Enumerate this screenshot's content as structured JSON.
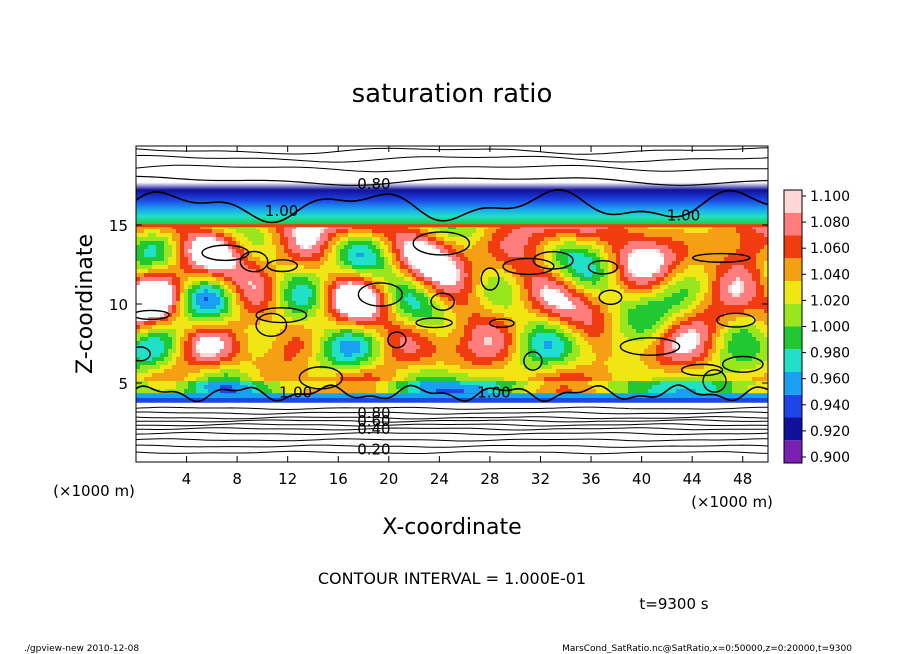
{
  "chart_data": {
    "type": "heatmap",
    "title": "saturation ratio",
    "xlabel": "X-coordinate",
    "ylabel": "Z-coordinate",
    "x_unit": "(×1000 m)",
    "y_unit": "(×1000 m)",
    "xlim": [
      0,
      50
    ],
    "ylim": [
      0,
      20
    ],
    "x_ticks": [
      4,
      8,
      12,
      16,
      20,
      24,
      28,
      32,
      36,
      40,
      44,
      48
    ],
    "y_ticks": [
      5,
      10,
      15
    ],
    "colorbar": {
      "levels": [
        0.9,
        0.92,
        0.94,
        0.96,
        0.98,
        1.0,
        1.02,
        1.04,
        1.06,
        1.08,
        1.1
      ],
      "labels": [
        "0.900",
        "0.920",
        "0.940",
        "0.960",
        "0.980",
        "1.000",
        "1.020",
        "1.040",
        "1.060",
        "1.080",
        "1.100"
      ],
      "colors": [
        "#7a1fb0",
        "#10109a",
        "#1e46e6",
        "#1aa0f0",
        "#20e0c8",
        "#22c832",
        "#9ae61e",
        "#f0e614",
        "#f5a014",
        "#f03c0f",
        "#ff7d7d",
        "#ffd7d7"
      ]
    },
    "contour_labels": [
      {
        "text": "0.80",
        "x": 17.5,
        "z": 17.6
      },
      {
        "text": "1.00",
        "x": 10.2,
        "z": 15.9
      },
      {
        "text": "1.00",
        "x": 42.0,
        "z": 15.6
      },
      {
        "text": "1.00",
        "x": 11.3,
        "z": 4.4
      },
      {
        "text": "1.00",
        "x": 27.0,
        "z": 4.4
      },
      {
        "text": "0.80",
        "x": 17.5,
        "z": 3.1
      },
      {
        "text": "0.60",
        "x": 17.5,
        "z": 2.6
      },
      {
        "text": "0.40",
        "x": 17.5,
        "z": 2.1
      },
      {
        "text": "0.20",
        "x": 17.5,
        "z": 0.8
      }
    ]
  },
  "contour_interval_text": "CONTOUR INTERVAL = 1.000E-01",
  "time_text": "t=9300 s",
  "footer": {
    "left": "./gpview-new  2010-12-08",
    "right": "MarsCond_SatRatio.nc@SatRatio,x=0:50000,z=0:20000,t=9300"
  }
}
